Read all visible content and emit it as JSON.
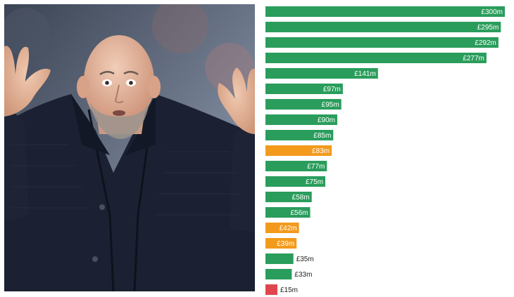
{
  "photo": {
    "subject": "man-shrugging-photo"
  },
  "colors": {
    "green": "#2a9d5c",
    "orange": "#f39a1c",
    "red": "#e0474c",
    "jacket": "#1b2133",
    "skin": "#e3b59c",
    "background_blur": "#7a8aa0"
  },
  "chart_data": {
    "type": "bar",
    "orientation": "horizontal",
    "xlim": [
      0,
      300
    ],
    "grid": false,
    "legend": "none",
    "values": [
      300,
      295,
      292,
      277,
      141,
      97,
      95,
      90,
      85,
      83,
      77,
      75,
      58,
      56,
      42,
      39,
      35,
      33,
      15
    ],
    "labels": [
      "£300m",
      "£295m",
      "£292m",
      "£277m",
      "£141m",
      "£97m",
      "£95m",
      "£90m",
      "£85m",
      "£83m",
      "£77m",
      "£75m",
      "£58m",
      "£56m",
      "£42m",
      "£39m",
      "£35m",
      "£33m",
      "£15m"
    ],
    "bar_colors": [
      "green",
      "green",
      "green",
      "green",
      "green",
      "green",
      "green",
      "green",
      "green",
      "orange",
      "green",
      "green",
      "green",
      "green",
      "orange",
      "orange",
      "green",
      "green",
      "red"
    ]
  }
}
